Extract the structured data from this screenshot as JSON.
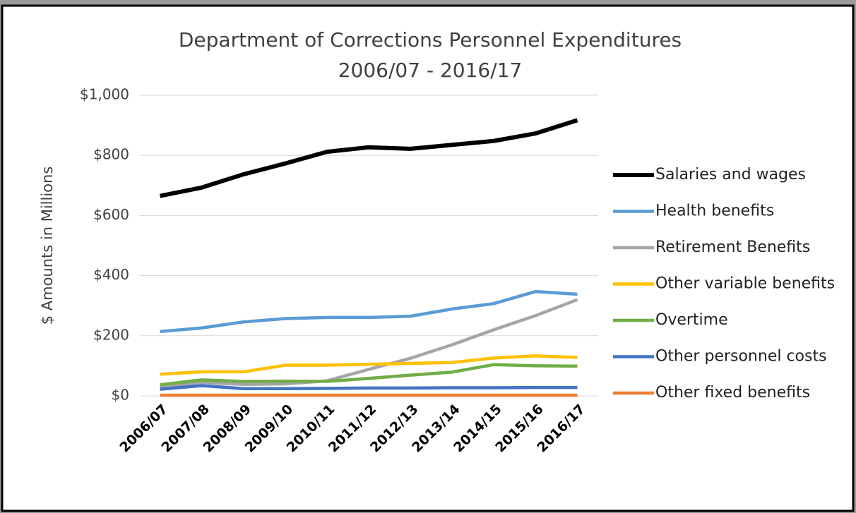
{
  "chart_data": {
    "type": "line",
    "title": "Department of Corrections Personnel Expenditures",
    "subtitle": "2006/07 - 2016/17",
    "y_label": "$ Amounts in Millions",
    "categories": [
      "2006/07",
      "2007/08",
      "2008/09",
      "2009/10",
      "2010/11",
      "2011/12",
      "2012/13",
      "2013/14",
      "2014/15",
      "2015/16",
      "2016/17"
    ],
    "ylim": [
      0,
      1000
    ],
    "yticks": [
      {
        "value": 0,
        "label": "$0"
      },
      {
        "value": 200,
        "label": "$200"
      },
      {
        "value": 400,
        "label": "$400"
      },
      {
        "value": 600,
        "label": "$600"
      },
      {
        "value": 800,
        "label": "$800"
      },
      {
        "value": 1000,
        "label": "$1,000"
      }
    ],
    "grid": true,
    "legend": "right",
    "series": [
      {
        "name": "Salaries and wages",
        "color": "#000000",
        "values": [
          665,
          693,
          737,
          773,
          812,
          827,
          822,
          835,
          848,
          873,
          917
        ]
      },
      {
        "name": "Health benefits",
        "color": "#5b9bd5",
        "values": [
          214,
          226,
          246,
          257,
          261,
          261,
          265,
          289,
          307,
          347,
          338
        ]
      },
      {
        "name": "Retirement Benefits",
        "color": "#a5a5a5",
        "values": [
          30,
          45,
          38,
          40,
          50,
          88,
          125,
          170,
          220,
          267,
          320
        ]
      },
      {
        "name": "Other variable benefits",
        "color": "#ffc000",
        "values": [
          72,
          80,
          80,
          102,
          102,
          105,
          108,
          111,
          126,
          133,
          128
        ]
      },
      {
        "name": "Overtime",
        "color": "#70ad47",
        "values": [
          37,
          53,
          48,
          49,
          48,
          58,
          69,
          79,
          104,
          100,
          99
        ]
      },
      {
        "name": "Other personnel costs",
        "color": "#4472c4",
        "values": [
          22,
          34,
          24,
          24,
          25,
          26,
          26,
          27,
          27,
          28,
          28
        ]
      },
      {
        "name": "Other fixed benefits",
        "color": "#ed7d31",
        "values": [
          2,
          2,
          2,
          2,
          2,
          2,
          2,
          2,
          2,
          2,
          2
        ]
      }
    ]
  }
}
